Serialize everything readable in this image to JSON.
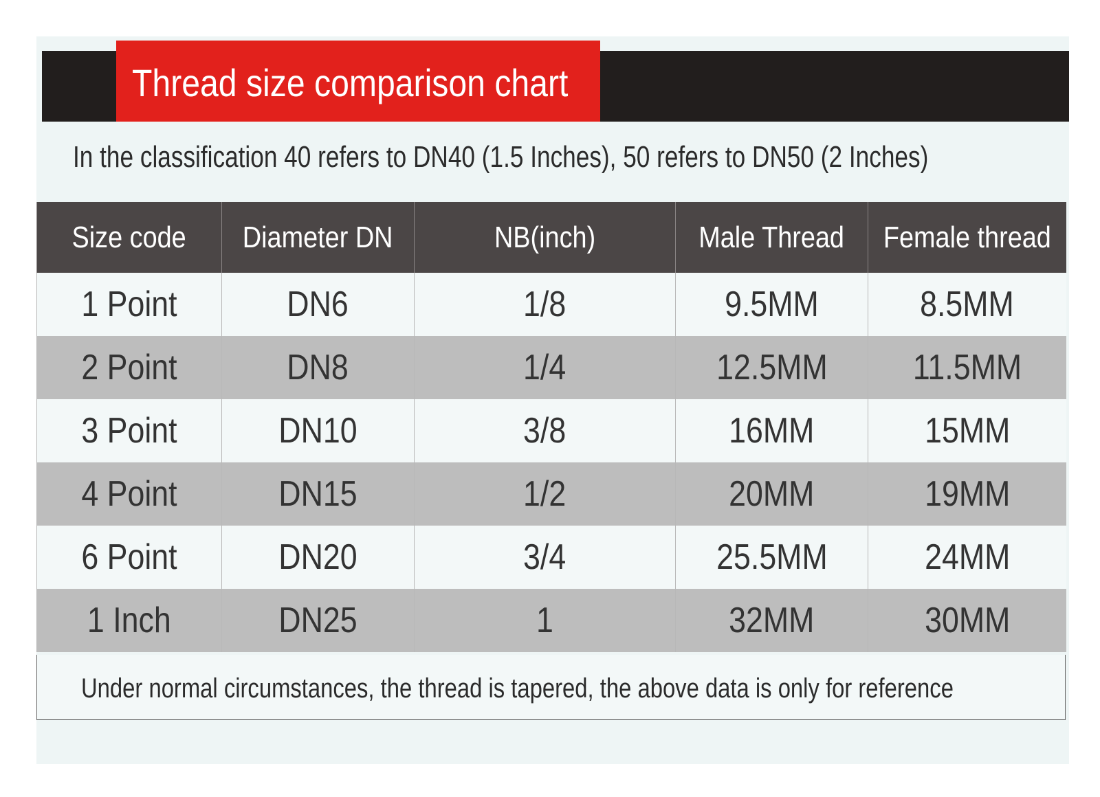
{
  "header": {
    "title": "Thread size comparison chart"
  },
  "subtitle": "In the classification 40 refers to DN40 (1.5 Inches), 50 refers to DN50 (2 Inches)",
  "table": {
    "columns": [
      "Size code",
      "Diameter DN",
      "NB(inch)",
      "Male Thread",
      "Female thread"
    ],
    "rows": [
      [
        "1 Point",
        "DN6",
        "1/8",
        "9.5MM",
        "8.5MM"
      ],
      [
        "2 Point",
        "DN8",
        "1/4",
        "12.5MM",
        "11.5MM"
      ],
      [
        "3 Point",
        "DN10",
        "3/8",
        "16MM",
        "15MM"
      ],
      [
        "4 Point",
        "DN15",
        "1/2",
        "20MM",
        "19MM"
      ],
      [
        "6 Point",
        "DN20",
        "3/4",
        "25.5MM",
        "24MM"
      ],
      [
        "1 Inch",
        "DN25",
        "1",
        "32MM",
        "30MM"
      ]
    ]
  },
  "footer": "Under normal circumstances, the thread is tapered, the above data is only for reference"
}
